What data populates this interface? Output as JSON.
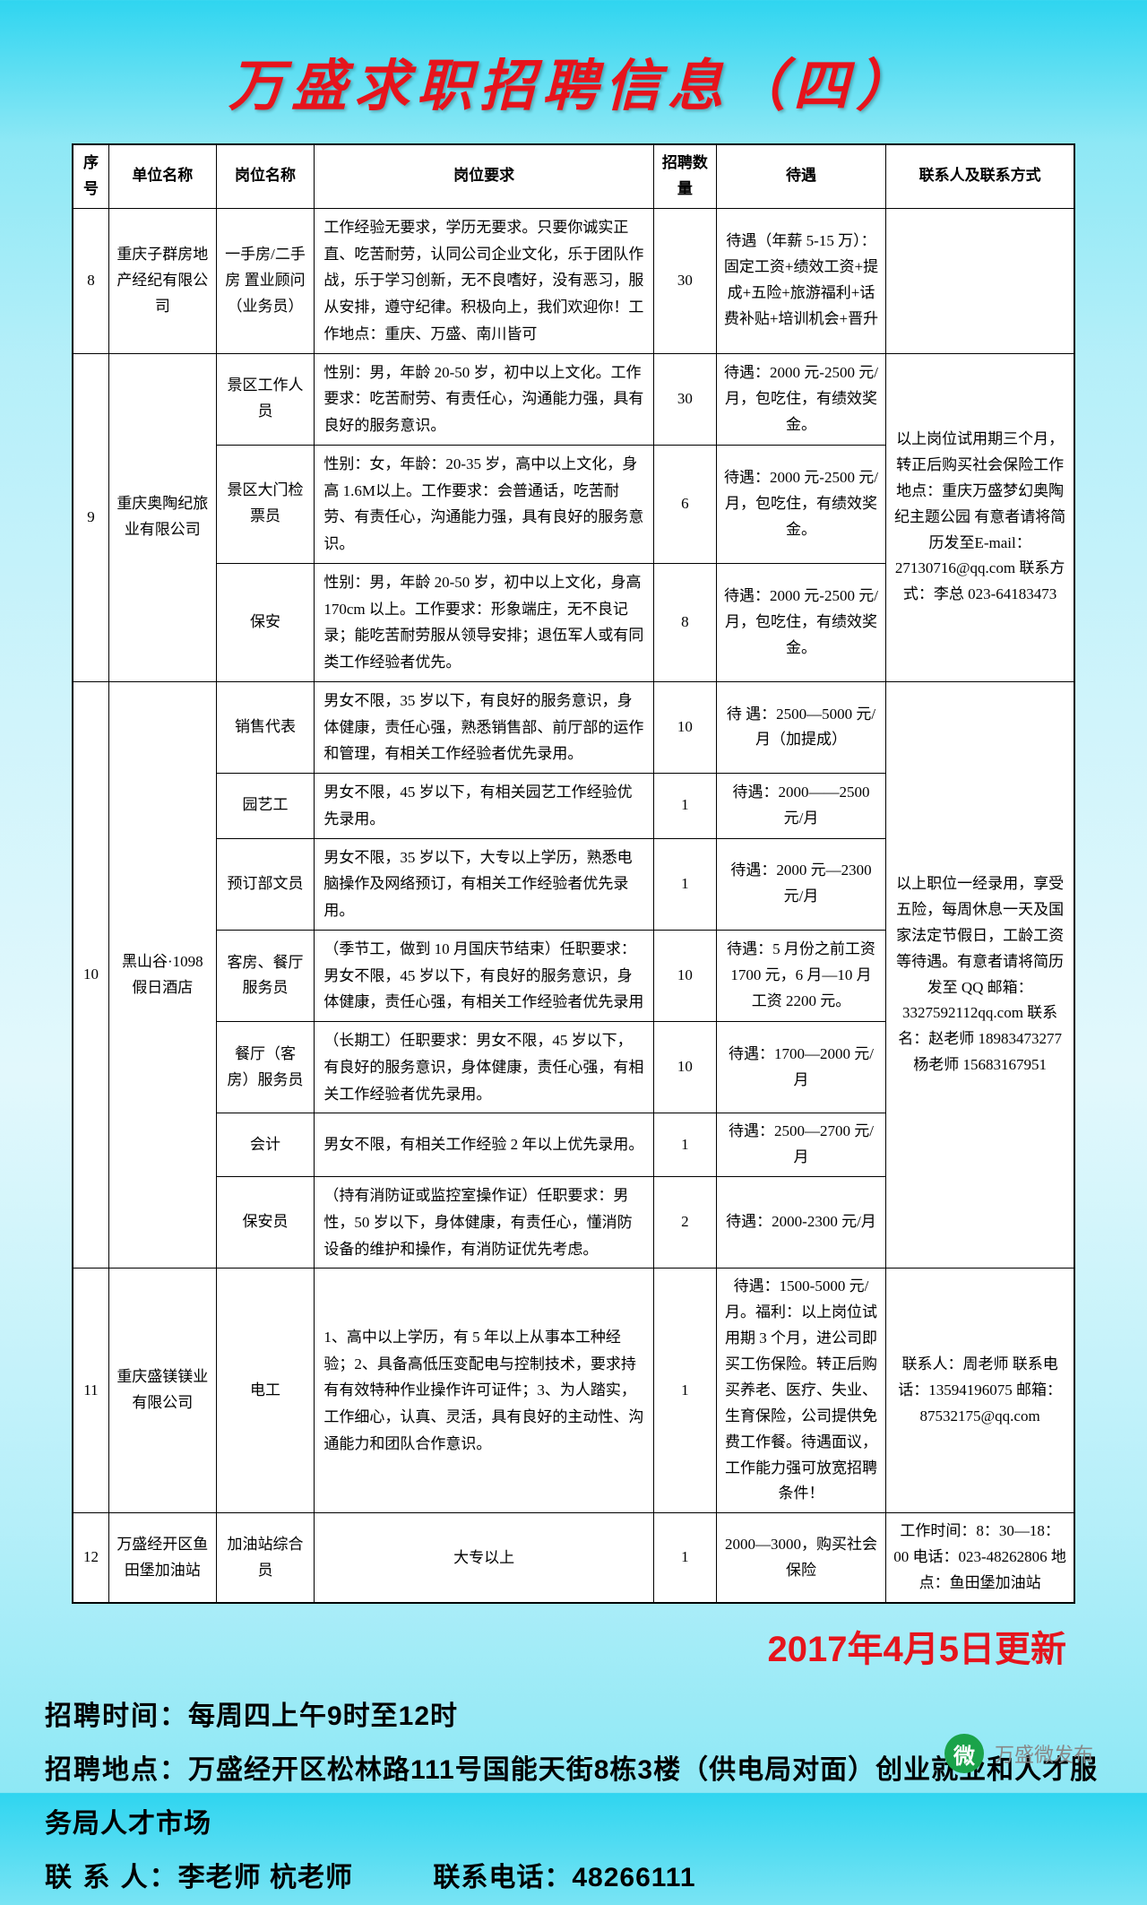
{
  "page_title": "万盛求职招聘信息（四）",
  "update_date": "2017年4月5日更新",
  "headers": {
    "seq": "序号",
    "unit": "单位名称",
    "position": "岗位名称",
    "requirement": "岗位要求",
    "number": "招聘数量",
    "pay": "待遇",
    "contact": "联系人及联系方式"
  },
  "rows": {
    "r8": {
      "seq": "8",
      "unit": "重庆子群房地产经纪有限公司",
      "position": "一手房/二手房 置业顾问（业务员）",
      "req": "工作经验无要求，学历无要求。只要你诚实正直、吃苦耐劳，认同公司企业文化，乐于团队作战，乐于学习创新，无不良嗜好，没有恶习，服从安排，遵守纪律。积极向上，我们欢迎你！工作地点：重庆、万盛、南川皆可",
      "num": "30",
      "pay": "待遇（年薪 5-15 万）：固定工资+绩效工资+提成+五险+旅游福利+话费补贴+培训机会+晋升",
      "contact": ""
    },
    "r9": {
      "seq": "9",
      "unit": "重庆奥陶纪旅业有限公司",
      "p1": {
        "pos": "景区工作人员",
        "req": "性别：男，年龄 20-50 岁，初中以上文化。工作要求：吃苦耐劳、有责任心，沟通能力强，具有良好的服务意识。",
        "num": "30",
        "pay": "待遇：2000 元-2500 元/月，包吃住，有绩效奖金。"
      },
      "p2": {
        "pos": "景区大门检票员",
        "req": "性别：女，年龄：20-35 岁，高中以上文化，身高 1.6M以上。工作要求：会普通话，吃苦耐劳、有责任心，沟通能力强，具有良好的服务意识。",
        "num": "6",
        "pay": "待遇：2000 元-2500 元/月，包吃住，有绩效奖金。"
      },
      "p3": {
        "pos": "保安",
        "req": "性别：男，年龄 20-50 岁，初中以上文化，身高 170cm 以上。工作要求：形象端庄，无不良记录；能吃苦耐劳服从领导安排；退伍军人或有同类工作经验者优先。",
        "num": "8",
        "pay": "待遇：2000 元-2500 元/月，包吃住，有绩效奖金。"
      },
      "contact": "以上岗位试用期三个月，转正后购买社会保险工作地点：重庆万盛梦幻奥陶纪主题公园 有意者请将简历发至E-mail：27130716@qq.com 联系方式：李总 023-64183473"
    },
    "r10": {
      "seq": "10",
      "unit": "黑山谷·1098 假日酒店",
      "p1": {
        "pos": "销售代表",
        "req": "男女不限，35 岁以下，有良好的服务意识，身体健康，责任心强，熟悉销售部、前厅部的运作和管理，有相关工作经验者优先录用。",
        "num": "10",
        "pay": "待  遇：2500—5000 元/月（加提成）"
      },
      "p2": {
        "pos": "园艺工",
        "req": "男女不限，45 岁以下，有相关园艺工作经验优先录用。",
        "num": "1",
        "pay": "待遇：2000——2500 元/月"
      },
      "p3": {
        "pos": "预订部文员",
        "req": "男女不限，35 岁以下，大专以上学历，熟悉电脑操作及网络预订，有相关工作经验者优先录用。",
        "num": "1",
        "pay": "待遇：2000 元—2300 元/月"
      },
      "p4": {
        "pos": "客房、餐厅服务员",
        "req": "（季节工，做到 10 月国庆节结束）任职要求：男女不限，45 岁以下，有良好的服务意识，身体健康，责任心强，有相关工作经验者优先录用",
        "num": "10",
        "pay": "待遇：5 月份之前工资 1700 元，6 月—10 月工资 2200 元。"
      },
      "p5": {
        "pos": "餐厅（客房）服务员",
        "req": "（长期工）任职要求：男女不限，45 岁以下，有良好的服务意识，身体健康，责任心强，有相关工作经验者优先录用。",
        "num": "10",
        "pay": "待遇：1700—2000 元/月"
      },
      "p6": {
        "pos": "会计",
        "req": "男女不限，有相关工作经验 2 年以上优先录用。",
        "num": "1",
        "pay": "待遇：2500—2700 元/月"
      },
      "p7": {
        "pos": "保安员",
        "req": "（持有消防证或监控室操作证）任职要求：男性，50 岁以下，身体健康，有责任心，懂消防设备的维护和操作，有消防证优先考虑。",
        "num": "2",
        "pay": "待遇：2000-2300 元/月"
      },
      "contact": "以上职位一经录用，享受五险，每周休息一天及国家法定节假日，工龄工资等待遇。有意者请将简历发至 QQ 邮箱：3327592112qq.com 联系名：赵老师 18983473277 杨老师 15683167951"
    },
    "r11": {
      "seq": "11",
      "unit": "重庆盛镁镁业有限公司",
      "pos": "电工",
      "req": "1、高中以上学历，有 5 年以上从事本工种经验；2、具备高低压变配电与控制技术，要求持有有效特种作业操作许可证件；3、为人踏实，工作细心，认真、灵活，具有良好的主动性、沟通能力和团队合作意识。",
      "num": "1",
      "pay": "待遇：1500-5000 元/月。福利：以上岗位试用期 3 个月，进公司即买工伤保险。转正后购买养老、医疗、失业、生育保险，公司提供免费工作餐。待遇面议，工作能力强可放宽招聘条件！",
      "contact": "联系人：周老师 联系电话：13594196075 邮箱：87532175@qq.com"
    },
    "r12": {
      "seq": "12",
      "unit": "万盛经开区鱼田堡加油站",
      "pos": "加油站综合员",
      "req": "大专以上",
      "num": "1",
      "pay": "2000—3000，购买社会保险",
      "contact": "工作时间：8：30—18：00 电话：023-48262806 地点：鱼田堡加油站"
    }
  },
  "footer": {
    "time_label": "招聘时间：",
    "time_value": "每周四上午9时至12时",
    "addr_label": "招聘地点：",
    "addr_value": "万盛经开区松林路111号国能天街8栋3楼（供电局对面）创业就业和人才服务局人才市场",
    "contact_label": "联 系 人：",
    "contact_value": "李老师 杭老师",
    "tel_label": "联系电话：",
    "tel_value": "48266111"
  },
  "watermark": {
    "icon": "微",
    "text": "万盛微发布"
  }
}
